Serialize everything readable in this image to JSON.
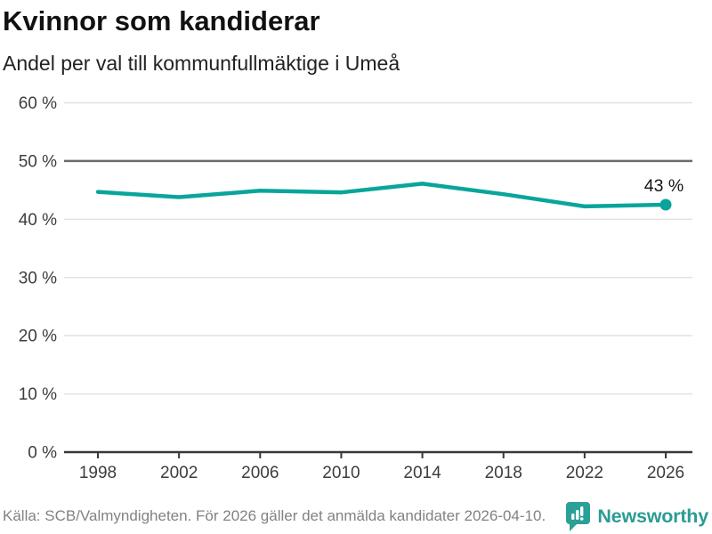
{
  "header": {
    "title": "Kvinnor som kandiderar",
    "subtitle": "Andel per val till kommunfullmäktige i Umeå"
  },
  "chart_data": {
    "type": "line",
    "title": "Kvinnor som kandiderar",
    "subtitle": "Andel per val till kommunfullmäktige i Umeå",
    "categories": [
      "1998",
      "2002",
      "2006",
      "2010",
      "2014",
      "2018",
      "2022",
      "2026"
    ],
    "values": [
      44.7,
      43.8,
      44.9,
      44.6,
      46.1,
      44.3,
      42.2,
      42.5
    ],
    "end_label": "43 %",
    "xlabel": "",
    "ylabel": "",
    "ylim": [
      0,
      60
    ],
    "yticks": [
      {
        "v": 0,
        "label": "0 %"
      },
      {
        "v": 10,
        "label": "10 %"
      },
      {
        "v": 20,
        "label": "20 %"
      },
      {
        "v": 30,
        "label": "30 %"
      },
      {
        "v": 40,
        "label": "40 %"
      },
      {
        "v": 50,
        "label": "50 %"
      },
      {
        "v": 60,
        "label": "60 %"
      }
    ],
    "reference_line": 50,
    "grid": true,
    "legend": false,
    "colors": {
      "line": "#09a59b",
      "marker": "#09a59b",
      "grid": "#e2e2e2",
      "reference_line": "#6b6b6b",
      "axis": "#383838",
      "tick_label": "#3d3d3d",
      "end_label": "#141414"
    }
  },
  "footer": {
    "source": "Källa: SCB/Valmyndigheten. För 2026 gäller det anmälda kandidater 2026-04-10.",
    "brand": "Newsworthy",
    "brand_color": "#2b9c93",
    "icon_color": "#2ba096"
  }
}
